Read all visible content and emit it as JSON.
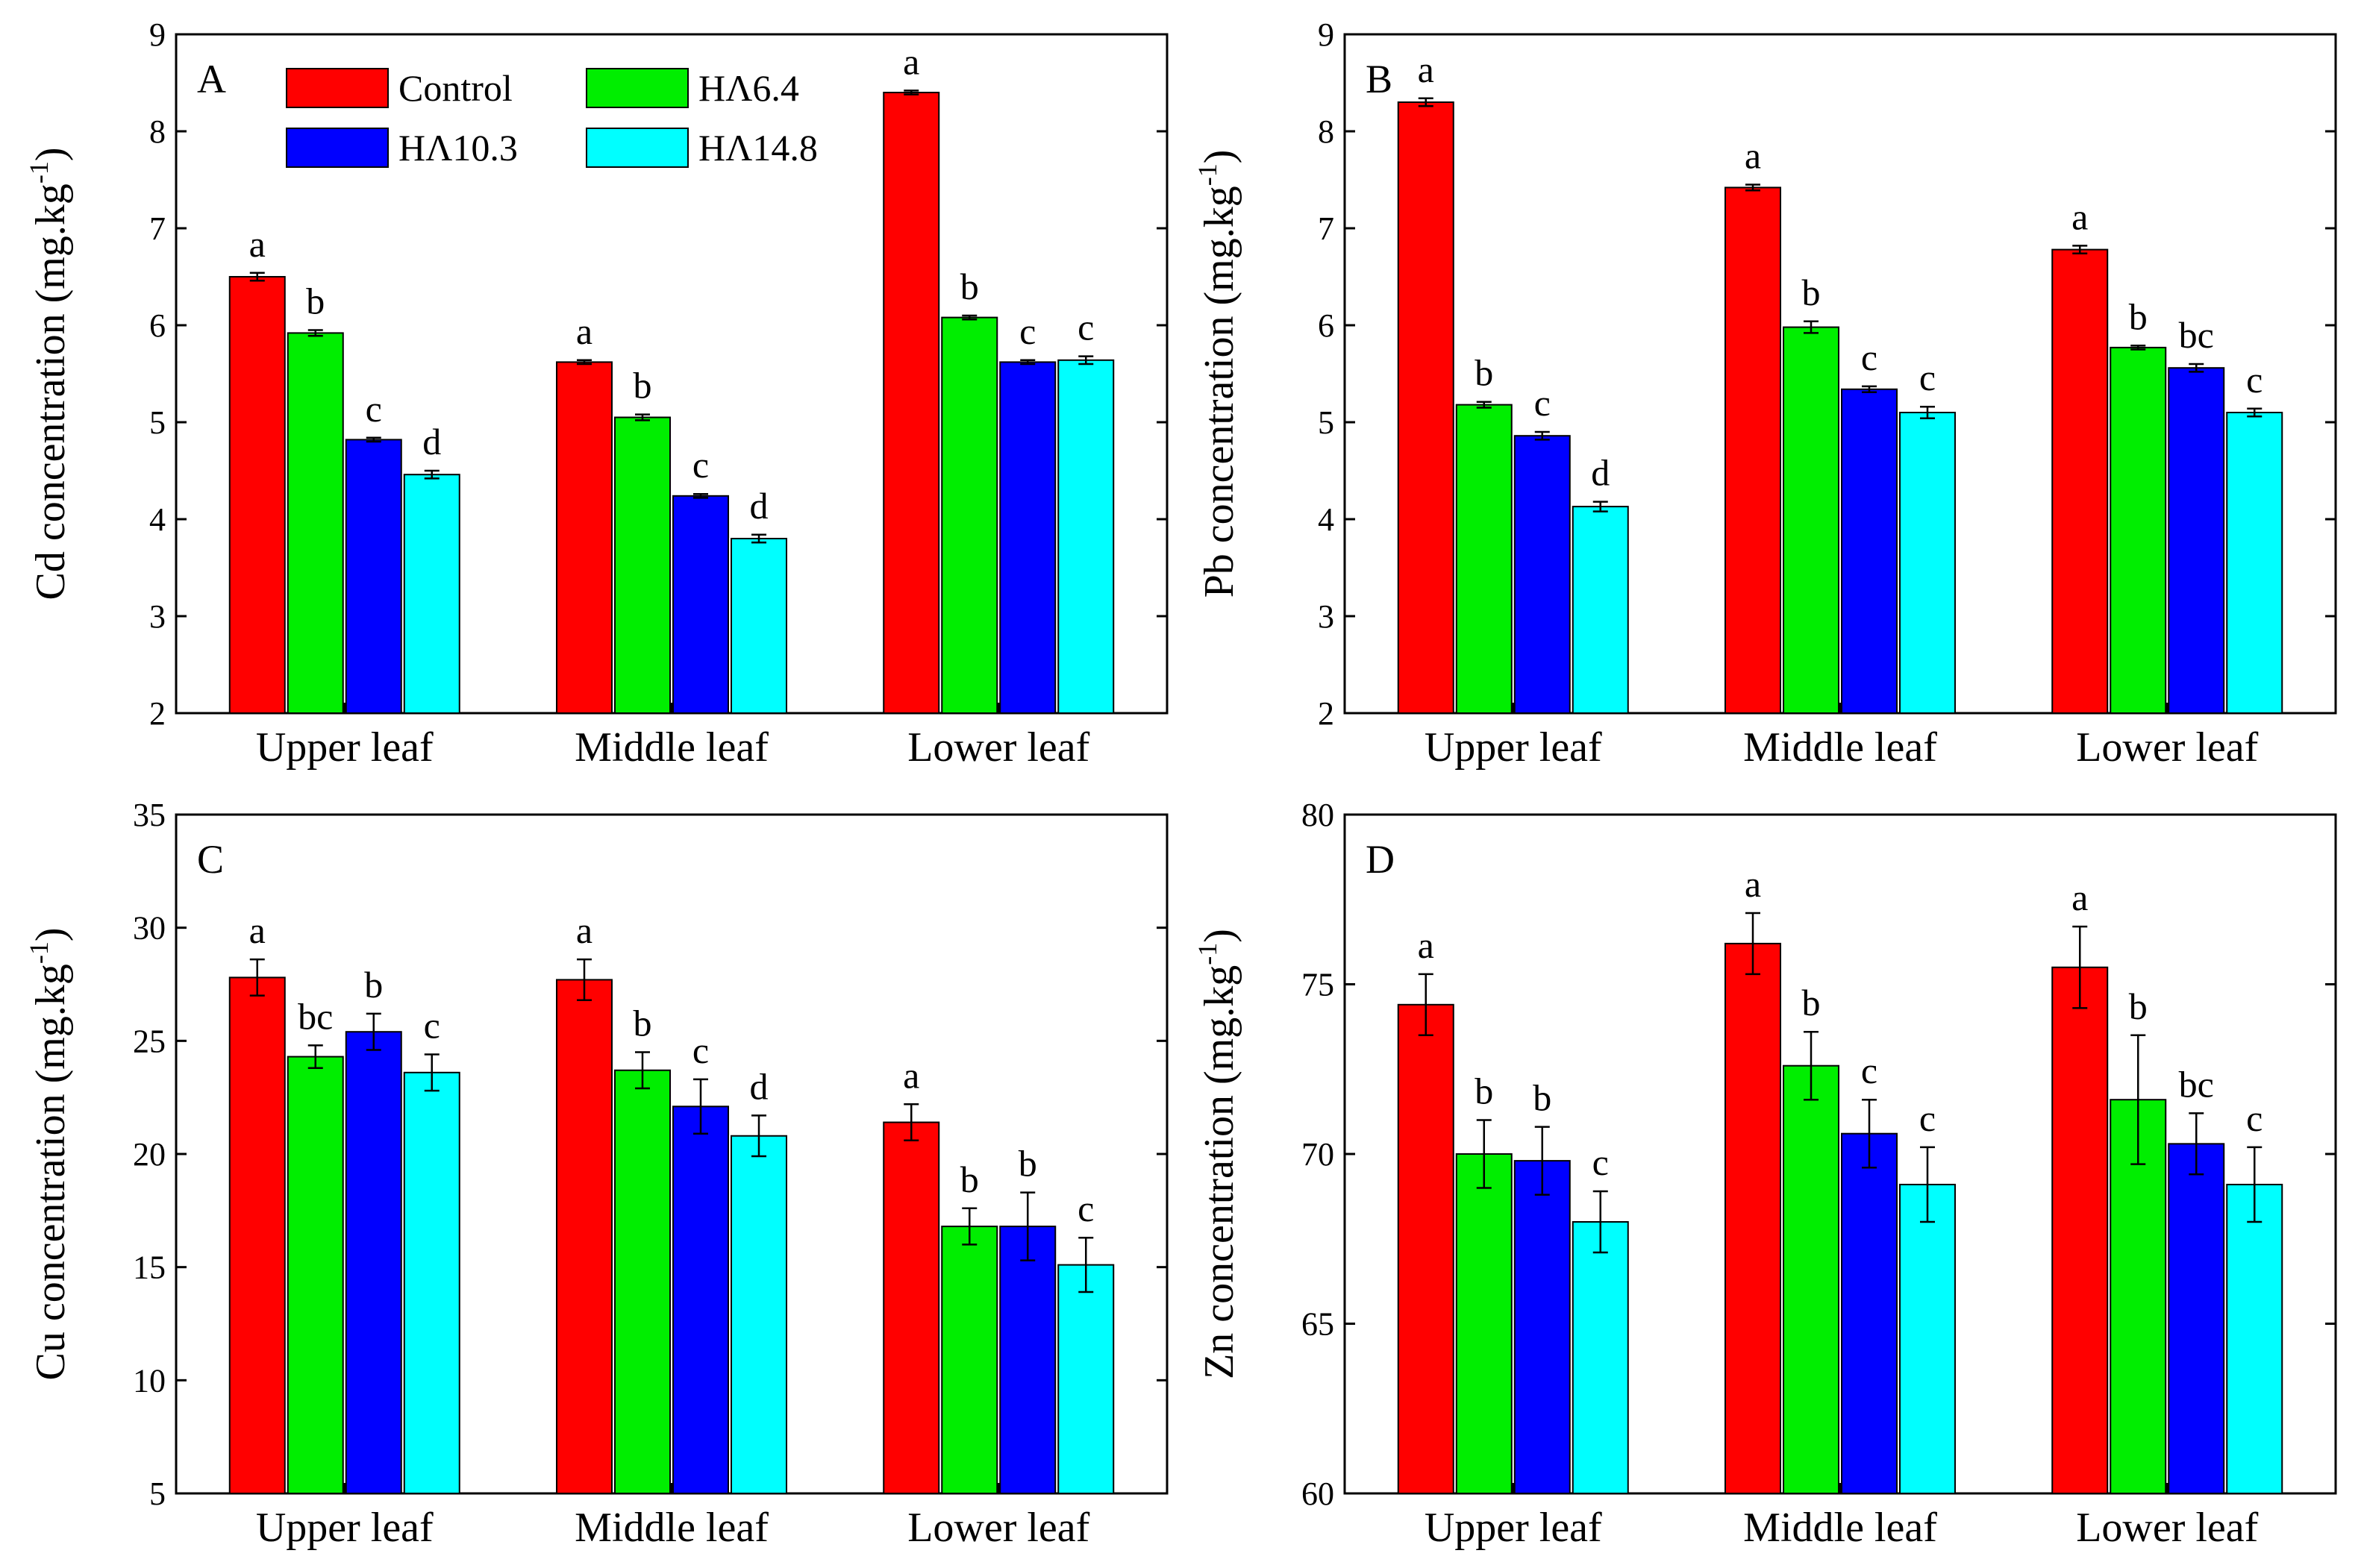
{
  "colors": {
    "Control": "#ff0000",
    "HA6.4": "#00ee00",
    "HA10.3": "#0000ff",
    "HA14.8": "#00ffff"
  },
  "legend": {
    "items": [
      "Control",
      "HΛ6.4",
      "HΛ10.3",
      "HΛ14.8"
    ]
  },
  "chart_data": [
    {
      "type": "bar",
      "panel": "A",
      "ylabel_main": "Cd concentration (mg.kg",
      "ylabel_sup": "-1",
      "ylabel_end": ")",
      "ylim": [
        2,
        9
      ],
      "yticks": [
        2,
        3,
        4,
        5,
        6,
        7,
        8,
        9
      ],
      "categories": [
        "Upper leaf",
        "Middle leaf",
        "Lower leaf"
      ],
      "series": [
        {
          "name": "Control",
          "values": [
            6.5,
            5.62,
            8.4
          ],
          "errors": [
            0.04,
            0.02,
            0.02
          ],
          "letters": [
            "a",
            "a",
            "a"
          ]
        },
        {
          "name": "HΛ6.4",
          "values": [
            5.92,
            5.05,
            6.08
          ],
          "errors": [
            0.03,
            0.03,
            0.02
          ],
          "letters": [
            "b",
            "b",
            "b"
          ]
        },
        {
          "name": "HΛ10.3",
          "values": [
            4.82,
            4.24,
            5.62
          ],
          "errors": [
            0.02,
            0.02,
            0.02
          ],
          "letters": [
            "c",
            "c",
            "c"
          ]
        },
        {
          "name": "HΛ14.8",
          "values": [
            4.46,
            3.8,
            5.64
          ],
          "errors": [
            0.04,
            0.04,
            0.04
          ],
          "letters": [
            "d",
            "d",
            "c"
          ]
        }
      ],
      "show_legend": true
    },
    {
      "type": "bar",
      "panel": "B",
      "ylabel_main": "Pb concentration (mg.kg",
      "ylabel_sup": "-1",
      "ylabel_end": ")",
      "ylim": [
        2,
        9
      ],
      "yticks": [
        2,
        3,
        4,
        5,
        6,
        7,
        8,
        9
      ],
      "categories": [
        "Upper leaf",
        "Middle leaf",
        "Lower leaf"
      ],
      "series": [
        {
          "name": "Control",
          "values": [
            8.3,
            7.42,
            6.78
          ],
          "errors": [
            0.04,
            0.03,
            0.04
          ],
          "letters": [
            "a",
            "a",
            "a"
          ]
        },
        {
          "name": "HΛ6.4",
          "values": [
            5.18,
            5.98,
            5.77
          ],
          "errors": [
            0.03,
            0.06,
            0.02
          ],
          "letters": [
            "b",
            "b",
            "b"
          ]
        },
        {
          "name": "HΛ10.3",
          "values": [
            4.86,
            5.34,
            5.56
          ],
          "errors": [
            0.04,
            0.03,
            0.04
          ],
          "letters": [
            "c",
            "c",
            "bc"
          ]
        },
        {
          "name": "HΛ14.8",
          "values": [
            4.13,
            5.1,
            5.1
          ],
          "errors": [
            0.05,
            0.06,
            0.04
          ],
          "letters": [
            "d",
            "c",
            "c"
          ]
        }
      ],
      "show_legend": false
    },
    {
      "type": "bar",
      "panel": "C",
      "ylabel_main": "Cu concentration (mg.kg",
      "ylabel_sup": "-1",
      "ylabel_end": ")",
      "ylim": [
        5,
        35
      ],
      "yticks": [
        5,
        10,
        15,
        20,
        25,
        30,
        35
      ],
      "categories": [
        "Upper leaf",
        "Middle leaf",
        "Lower leaf"
      ],
      "series": [
        {
          "name": "Control",
          "values": [
            27.8,
            27.7,
            21.4
          ],
          "errors": [
            0.8,
            0.9,
            0.8
          ],
          "letters": [
            "a",
            "a",
            "a"
          ]
        },
        {
          "name": "HΛ6.4",
          "values": [
            24.3,
            23.7,
            16.8
          ],
          "errors": [
            0.5,
            0.8,
            0.8
          ],
          "letters": [
            "bc",
            "b",
            "b"
          ]
        },
        {
          "name": "HΛ10.3",
          "values": [
            25.4,
            22.1,
            16.8
          ],
          "errors": [
            0.8,
            1.2,
            1.5
          ],
          "letters": [
            "b",
            "c",
            "b"
          ]
        },
        {
          "name": "HΛ14.8",
          "values": [
            23.6,
            20.8,
            15.1
          ],
          "errors": [
            0.8,
            0.9,
            1.2
          ],
          "letters": [
            "c",
            "d",
            "c"
          ]
        }
      ],
      "show_legend": false
    },
    {
      "type": "bar",
      "panel": "D",
      "ylabel_main": "Zn concentration (mg.kg",
      "ylabel_sup": "-1",
      "ylabel_end": ")",
      "ylim": [
        60,
        80
      ],
      "yticks": [
        60,
        65,
        70,
        75,
        80
      ],
      "categories": [
        "Upper leaf",
        "Middle leaf",
        "Lower leaf"
      ],
      "series": [
        {
          "name": "Control",
          "values": [
            74.4,
            76.2,
            75.5
          ],
          "errors": [
            0.9,
            0.9,
            1.2
          ],
          "letters": [
            "a",
            "a",
            "a"
          ]
        },
        {
          "name": "HΛ6.4",
          "values": [
            70.0,
            72.6,
            71.6
          ],
          "errors": [
            1.0,
            1.0,
            1.9
          ],
          "letters": [
            "b",
            "b",
            "b"
          ]
        },
        {
          "name": "HΛ10.3",
          "values": [
            69.8,
            70.6,
            70.3
          ],
          "errors": [
            1.0,
            1.0,
            0.9
          ],
          "letters": [
            "b",
            "c",
            "bc"
          ]
        },
        {
          "name": "HΛ14.8",
          "values": [
            68.0,
            69.1,
            69.1
          ],
          "errors": [
            0.9,
            1.1,
            1.1
          ],
          "letters": [
            "c",
            "c",
            "c"
          ]
        }
      ],
      "show_legend": false
    }
  ]
}
